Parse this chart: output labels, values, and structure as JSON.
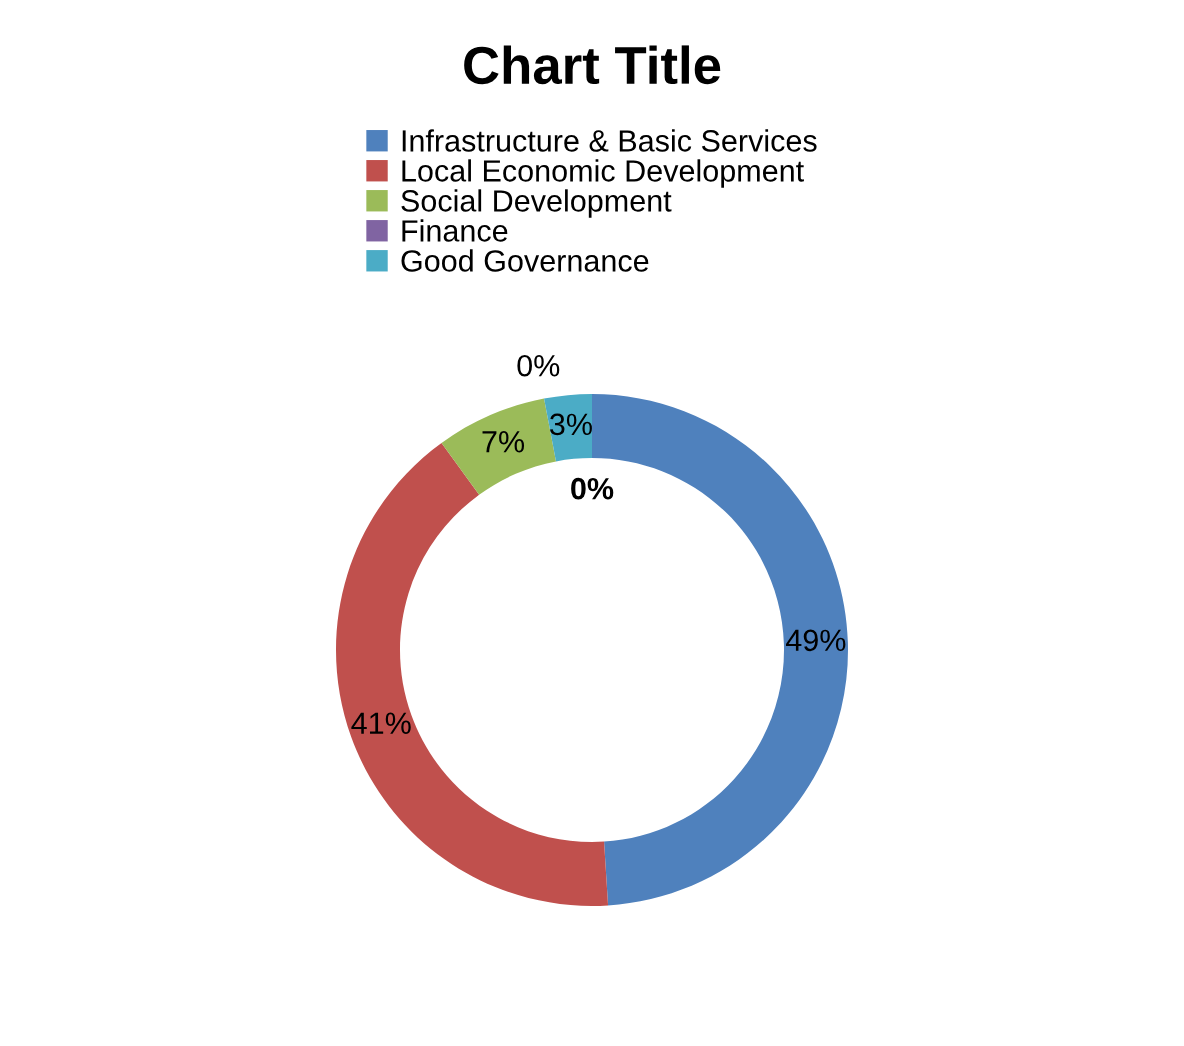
{
  "chart_data": {
    "type": "donut",
    "title": "Chart Title",
    "categories": [
      "Infrastructure & Basic Services",
      "Local Economic Development",
      "Social Development",
      "Finance",
      "Good Governance"
    ],
    "values": [
      49,
      41,
      7,
      0,
      3
    ],
    "colors": [
      "#4f81bd",
      "#c0504d",
      "#9bbb59",
      "#8064a2",
      "#4bacc6"
    ],
    "value_labels": [
      "49%",
      "41%",
      "7%",
      "0%",
      "3%"
    ],
    "annotations": [
      "0%"
    ],
    "legend": "top"
  }
}
